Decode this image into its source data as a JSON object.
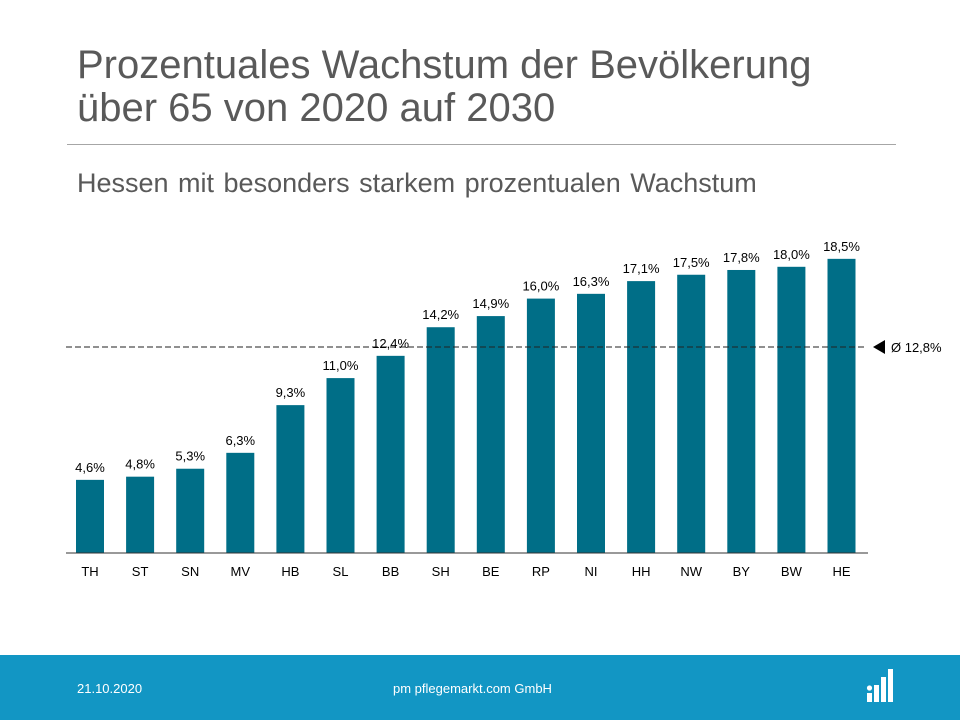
{
  "header": {
    "title_line1": "Prozentuales Wachstum der Bevölkerung",
    "title_line2": "über 65 von 2020 auf 2030",
    "subtitle": "Hessen mit besonders starkem prozentualen Wachstum"
  },
  "chart_data": {
    "type": "bar",
    "title": "Prozentuales Wachstum der Bevölkerung über 65 von 2020 auf 2030",
    "subtitle": "Hessen mit besonders starkem prozentualen Wachstum",
    "xlabel": "",
    "ylabel": "",
    "ylim": [
      0,
      20
    ],
    "grid": false,
    "categories": [
      "TH",
      "ST",
      "SN",
      "MV",
      "HB",
      "SL",
      "BB",
      "SH",
      "BE",
      "RP",
      "NI",
      "HH",
      "NW",
      "BY",
      "BW",
      "HE"
    ],
    "values": [
      4.6,
      4.8,
      5.3,
      6.3,
      9.3,
      11.0,
      12.4,
      14.2,
      14.9,
      16.0,
      16.3,
      17.1,
      17.5,
      17.8,
      18.0,
      18.5
    ],
    "value_labels": [
      "4,6%",
      "4,8%",
      "5,3%",
      "6,3%",
      "9,3%",
      "11,0%",
      "12,4%",
      "14,2%",
      "14,9%",
      "16,0%",
      "16,3%",
      "17,1%",
      "17,5%",
      "17,8%",
      "18,0%",
      "18,5%"
    ],
    "average": {
      "value": 12.8,
      "label": "Ø 12,8%"
    },
    "bar_color": "#006e87"
  },
  "footer": {
    "date": "21.10.2020",
    "company": "pm pflegemarkt.com GmbH"
  },
  "colors": {
    "footer_bg": "#1296c4",
    "title_text": "#595959",
    "bar": "#006e87"
  }
}
